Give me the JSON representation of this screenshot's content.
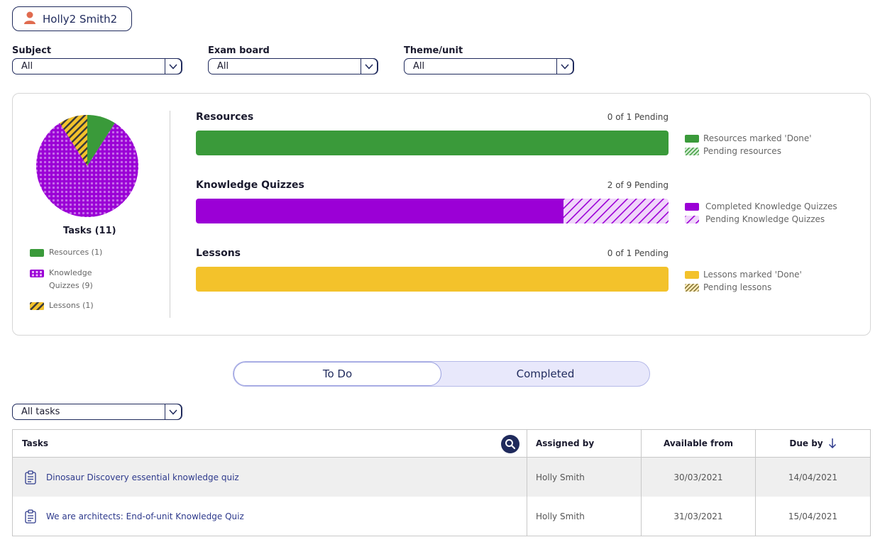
{
  "user": {
    "name": "Holly2 Smith2",
    "icon": "user-icon",
    "icon_color": "#e06b4f"
  },
  "filters": [
    {
      "label": "Subject",
      "value": "All"
    },
    {
      "label": "Exam board",
      "value": "All"
    },
    {
      "label": "Theme/unit",
      "value": "All"
    }
  ],
  "summary": {
    "pie": {
      "title": "Tasks (11)",
      "slices": [
        {
          "name": "Resources",
          "count": 1,
          "color": "#3a9a3a",
          "pattern": "solid"
        },
        {
          "name": "Knowledge Quizzes",
          "count": 9,
          "color": "#9b00d6",
          "pattern": "grid"
        },
        {
          "name": "Lessons",
          "count": 1,
          "color": "#f3c22b",
          "pattern": "stripes"
        }
      ],
      "legend": [
        {
          "label": "Resources (1)"
        },
        {
          "label": "Knowledge Quizzes (9)"
        },
        {
          "label": "Lessons (1)"
        }
      ]
    },
    "bars": [
      {
        "title": "Resources",
        "count_text": "0 of 1 Pending",
        "total": 1,
        "pending": 0,
        "color": "#3a9a3a",
        "legend_done": "Resources marked 'Done'",
        "legend_pending": "Pending resources"
      },
      {
        "title": "Knowledge Quizzes",
        "count_text": "2 of 9 Pending",
        "total": 9,
        "pending": 2,
        "color": "#9b00d6",
        "legend_done": "Completed Knowledge Quizzes",
        "legend_pending": "Pending Knowledge Quizzes"
      },
      {
        "title": "Lessons",
        "count_text": "0 of 1 Pending",
        "total": 1,
        "pending": 0,
        "color": "#f3c22b",
        "legend_done": "Lessons marked 'Done'",
        "legend_pending": "Pending lessons"
      }
    ]
  },
  "toggle": {
    "todo": "To Do",
    "completed": "Completed",
    "active": "todo"
  },
  "tasks_filter": {
    "value": "All tasks"
  },
  "table": {
    "headers": {
      "tasks": "Tasks",
      "assigned_by": "Assigned by",
      "available_from": "Available from",
      "due_by": "Due by"
    },
    "rows": [
      {
        "task": "Dinosaur Discovery essential knowledge quiz",
        "assigned_by": "Holly Smith",
        "available_from": "30/03/2021",
        "due_by": "14/04/2021"
      },
      {
        "task": "We are architects: End-of-unit Knowledge Quiz",
        "assigned_by": "Holly Smith",
        "available_from": "31/03/2021",
        "due_by": "15/04/2021"
      }
    ]
  }
}
